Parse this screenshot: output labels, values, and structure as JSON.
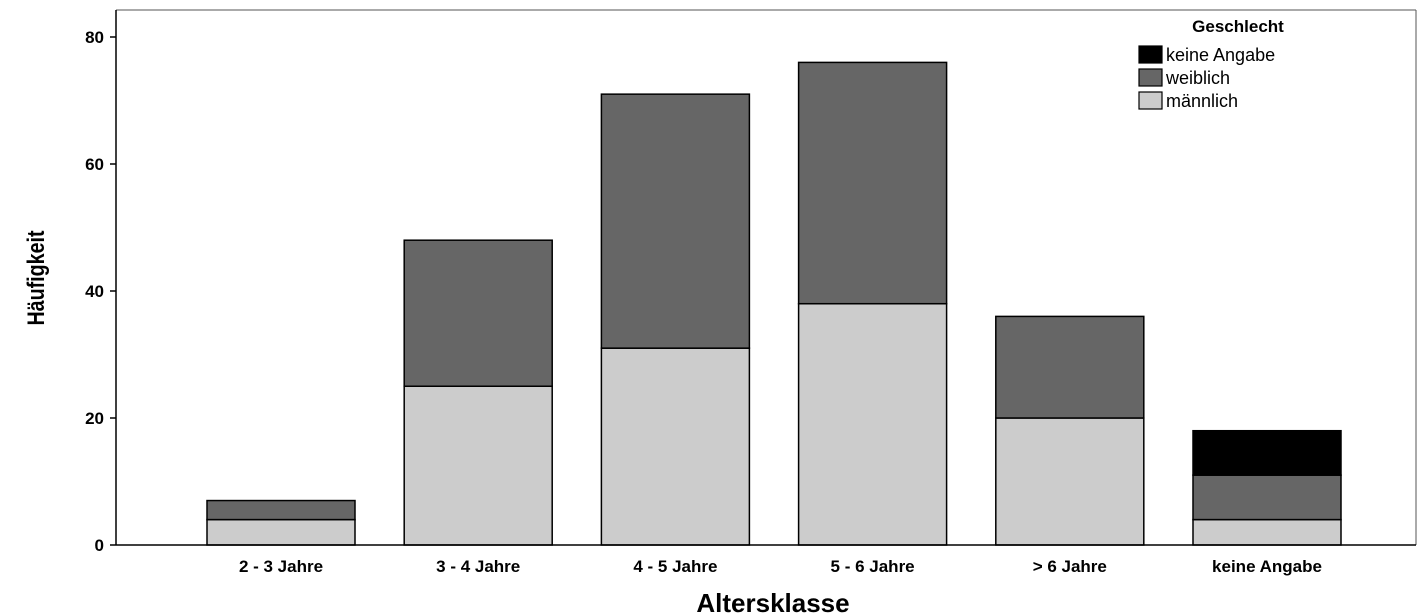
{
  "chart_data": {
    "type": "bar",
    "stacked": true,
    "categories": [
      "2 - 3 Jahre",
      "3 - 4 Jahre",
      "4 - 5 Jahre",
      "5 - 6 Jahre",
      "> 6  Jahre",
      "keine Angabe"
    ],
    "series": [
      {
        "name": "männlich",
        "values": [
          4,
          25,
          31,
          38,
          20,
          4
        ],
        "color": "#cccccc"
      },
      {
        "name": "weiblich",
        "values": [
          3,
          23,
          40,
          38,
          16,
          7
        ],
        "color": "#666666"
      },
      {
        "name": "keine Angabe",
        "values": [
          0,
          0,
          0,
          0,
          0,
          7
        ],
        "color": "#000000"
      }
    ],
    "xlabel": "Altersklasse",
    "ylabel": "Häufigkeit",
    "ylim": [
      0,
      84
    ],
    "yticks": [
      "0",
      "20",
      "40",
      "60",
      "80"
    ],
    "grid": false,
    "legend": {
      "title": "Geschlecht",
      "placement": "top-right",
      "entries": [
        "keine Angabe",
        "weiblich",
        "männlich"
      ]
    }
  }
}
